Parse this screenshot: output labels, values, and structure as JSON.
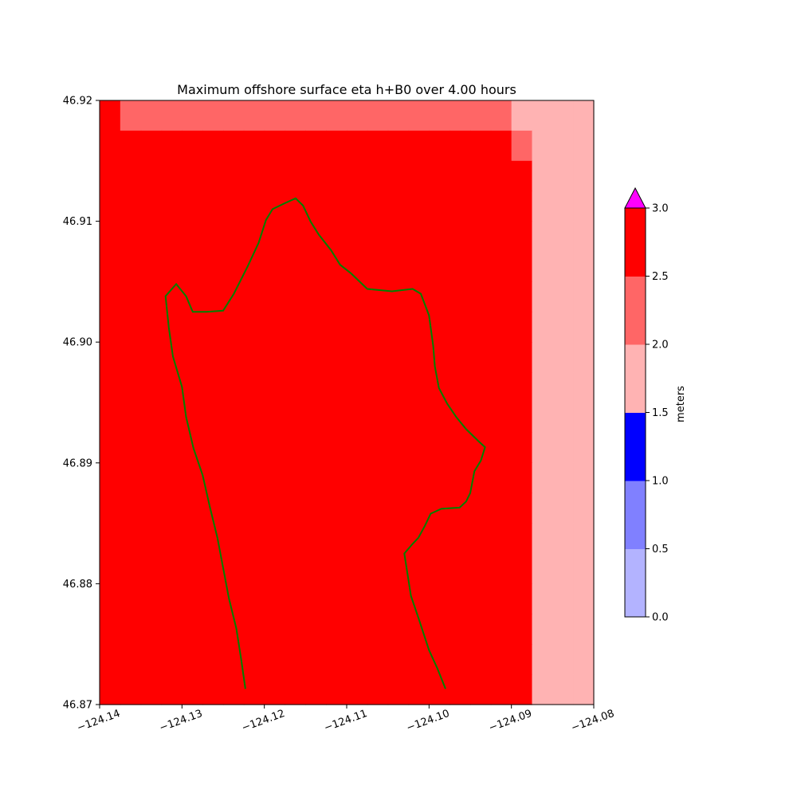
{
  "chart_data": {
    "type": "heatmap",
    "title": "Maximum offshore surface eta h+B0 over 4.00 hours",
    "xlim": [
      -124.14,
      -124.08
    ],
    "ylim": [
      46.87,
      46.92
    ],
    "x_ticks": [
      -124.14,
      -124.13,
      -124.12,
      -124.11,
      -124.1,
      -124.09,
      -124.08
    ],
    "x_tick_labels": [
      "−124.14",
      "−124.13",
      "−124.12",
      "−124.11",
      "−124.10",
      "−124.09",
      "−124.08"
    ],
    "y_ticks": [
      46.87,
      46.88,
      46.89,
      46.9,
      46.91,
      46.92
    ],
    "y_tick_labels": [
      "46.87",
      "46.88",
      "46.89",
      "46.90",
      "46.91",
      "46.92"
    ],
    "grid": false,
    "cell_size_deg": 0.0025,
    "level_colors": [
      "#b3b3ff",
      "#8080ff",
      "#0000ff",
      "#ffb3b3",
      "#ff6666",
      "#ff0000",
      "#ff00ff"
    ],
    "level_legend": "0:0.0-0.5, 1:0.5-1.0, 2:1.0-1.5, 3:1.5-2.0, 4:2.0-2.5, 5:2.5-3.0, 6:>3.0, .:no data",
    "grid_rows_top_to_bottom": [
      "544444444444444444443333",
      "555555555555555555554333",
      "555555555555555555555333",
      "555555555555555555555333",
      "555555555555555555555333",
      "555555555555555555555333",
      "555555555555555555555333",
      "555555555555555555555333",
      "555555555555555555555333",
      "555555555555555555555333",
      "555555555555555555555333",
      "555555555555555555555333",
      "555555555555555555555333",
      "555555555555555555555333",
      "555555555555555555555333",
      "555555555555555555555333",
      "555555555555555555555333",
      "555555555555555555555333",
      "555555555555555555555333",
      "555555555555555555555333"
    ],
    "coastline": [
      [
        -124.1223,
        46.8713
      ],
      [
        -124.1228,
        46.8737
      ],
      [
        -124.1234,
        46.8763
      ],
      [
        -124.1243,
        46.8788
      ],
      [
        -124.125,
        46.8813
      ],
      [
        -124.1257,
        46.8838
      ],
      [
        -124.1266,
        46.8863
      ],
      [
        -124.1275,
        46.889
      ],
      [
        -124.1286,
        46.8912
      ],
      [
        -124.1295,
        46.8938
      ],
      [
        -124.13,
        46.8963
      ],
      [
        -124.1311,
        46.8988
      ],
      [
        -124.1316,
        46.9012
      ],
      [
        -124.132,
        46.9038
      ],
      [
        -124.1307,
        46.9048
      ],
      [
        -124.1295,
        46.9038
      ],
      [
        -124.1287,
        46.9025
      ],
      [
        -124.127,
        46.9025
      ],
      [
        -124.125,
        46.9026
      ],
      [
        -124.1237,
        46.904
      ],
      [
        -124.122,
        46.9063
      ],
      [
        -124.1207,
        46.9082
      ],
      [
        -124.1198,
        46.9101
      ],
      [
        -124.119,
        46.911
      ],
      [
        -124.1175,
        46.9115
      ],
      [
        -124.1162,
        46.9119
      ],
      [
        -124.1153,
        46.9113
      ],
      [
        -124.1144,
        46.91
      ],
      [
        -124.1134,
        46.9089
      ],
      [
        -124.1119,
        46.9076
      ],
      [
        -124.1108,
        46.9064
      ],
      [
        -124.1095,
        46.9057
      ],
      [
        -124.1075,
        46.9044
      ],
      [
        -124.1045,
        46.9042
      ],
      [
        -124.102,
        46.9044
      ],
      [
        -124.101,
        46.904
      ],
      [
        -124.1,
        46.9022
      ],
      [
        -124.0995,
        46.8997
      ],
      [
        -124.0993,
        46.898
      ],
      [
        -124.0988,
        46.8962
      ],
      [
        -124.0978,
        46.8949
      ],
      [
        -124.0967,
        46.8938
      ],
      [
        -124.0955,
        46.8928
      ],
      [
        -124.094,
        46.8918
      ],
      [
        -124.0932,
        46.8913
      ],
      [
        -124.0937,
        46.8902
      ],
      [
        -124.0945,
        46.8893
      ],
      [
        -124.095,
        46.8875
      ],
      [
        -124.0955,
        46.8868
      ],
      [
        -124.0963,
        46.8863
      ],
      [
        -124.0985,
        46.8862
      ],
      [
        -124.0998,
        46.8858
      ],
      [
        -124.1005,
        46.8848
      ],
      [
        -124.1013,
        46.8838
      ],
      [
        -124.102,
        46.8833
      ],
      [
        -124.103,
        46.8825
      ],
      [
        -124.1022,
        46.879
      ],
      [
        -124.1012,
        46.877
      ],
      [
        -124.1,
        46.8745
      ],
      [
        -124.099,
        46.873
      ],
      [
        -124.098,
        46.8713
      ]
    ],
    "colorbar": {
      "label": "meters",
      "ticks": [
        0.0,
        0.5,
        1.0,
        1.5,
        2.0,
        2.5,
        3.0
      ],
      "tick_labels": [
        "0.0",
        "0.5",
        "1.0",
        "1.5",
        "2.0",
        "2.5",
        "3.0"
      ],
      "extend": "max"
    },
    "colors": {
      "coastline": "#008000"
    }
  }
}
